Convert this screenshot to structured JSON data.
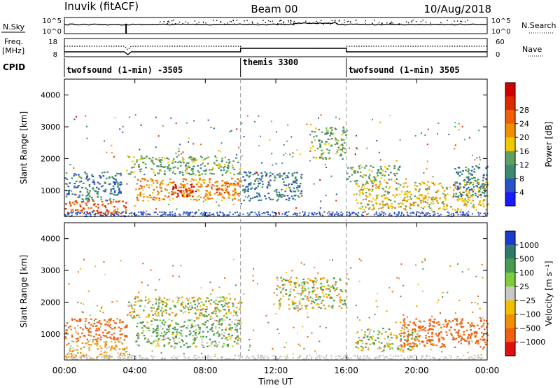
{
  "header": {
    "station": "Inuvik (fitACF)",
    "beam": "Beam 00",
    "date": "10/Aug/2018"
  },
  "left_labels": {
    "nsky": "N.Sky",
    "freq_top": "Freq.",
    "freq_unit": "[MHz]",
    "cpid": "CPID"
  },
  "right_labels": {
    "nsearch": "N.Search",
    "nave": "Nave"
  },
  "top_panels": {
    "noise_ticks_left": [
      "10^5",
      "10^0"
    ],
    "noise_ticks_right": [
      "10^5",
      "10^0"
    ],
    "freq_ticks_left": [
      "18",
      "8"
    ],
    "nave_ticks_right": [
      "60",
      "0"
    ]
  },
  "cpid_segments": [
    {
      "label": "twofsound (1-min) -3505",
      "start": 0,
      "end": 10
    },
    {
      "label": "themis 3300",
      "start": 10,
      "end": 16
    },
    {
      "label": "twofsound (1-min) 3505",
      "start": 16,
      "end": 24
    }
  ],
  "axes": {
    "xlabel": "Time UT",
    "ylabel": "Slant Range [km]",
    "x_ticks": [
      "00:00",
      "04:00",
      "08:00",
      "12:00",
      "16:00",
      "20:00",
      "00:00"
    ],
    "y_ticks": [
      "1000",
      "2000",
      "3000",
      "4000"
    ]
  },
  "colorbars": {
    "power": {
      "title": "Power [dB]",
      "ticks": [
        "4",
        "8",
        "12",
        "16",
        "20",
        "24",
        "28"
      ],
      "colors": [
        "#1a1aff",
        "#2a52c8",
        "#3a8a70",
        "#5fa060",
        "#f0c800",
        "#f09000",
        "#f06000",
        "#e02800",
        "#d00000"
      ]
    },
    "velocity": {
      "title": "Velocity [m s⁻¹]",
      "ticks": [
        "1000",
        "500",
        "100",
        "25",
        "−25",
        "−100",
        "−500",
        "−1000"
      ],
      "colors": [
        "#1a3cc8",
        "#2f7a68",
        "#4a9a50",
        "#7ccd3c",
        "#c8c8c4",
        "#f0c000",
        "#f09000",
        "#f06010",
        "#e01010"
      ]
    }
  },
  "chart_data": {
    "type": "heatmap",
    "x_unit": "hours UT",
    "y_unit": "km",
    "xlim": [
      0,
      24
    ],
    "ylim": [
      180,
      4500
    ],
    "power_clusters": [
      {
        "t0": 0.0,
        "t1": 3.6,
        "r0": 250,
        "r1": 700,
        "level": 24
      },
      {
        "t0": 0.0,
        "t1": 3.2,
        "r0": 700,
        "r1": 1600,
        "level": 8
      },
      {
        "t0": 4.0,
        "t1": 10.0,
        "r0": 700,
        "r1": 1400,
        "level": 20
      },
      {
        "t0": 6.0,
        "t1": 7.5,
        "r0": 800,
        "r1": 1200,
        "level": 28
      },
      {
        "t0": 8.5,
        "t1": 10.0,
        "r0": 900,
        "r1": 1300,
        "level": 24
      },
      {
        "t0": 3.5,
        "t1": 10.0,
        "r0": 1500,
        "r1": 2100,
        "level": 12
      },
      {
        "t0": 10.0,
        "t1": 13.5,
        "r0": 700,
        "r1": 1600,
        "level": 8
      },
      {
        "t0": 14.0,
        "t1": 16.0,
        "r0": 2000,
        "r1": 3000,
        "level": 12
      },
      {
        "t0": 16.0,
        "t1": 19.0,
        "r0": 1300,
        "r1": 1800,
        "level": 12
      },
      {
        "t0": 16.5,
        "t1": 24.0,
        "r0": 400,
        "r1": 1300,
        "level": 16
      },
      {
        "t0": 22.0,
        "t1": 24.0,
        "r0": 800,
        "r1": 1800,
        "level": 8
      }
    ],
    "velocity_clusters": [
      {
        "t0": 0.0,
        "t1": 3.6,
        "r0": 250,
        "r1": 800,
        "v": -100
      },
      {
        "t0": 0.0,
        "t1": 3.5,
        "r0": 800,
        "r1": 1500,
        "v": -500
      },
      {
        "t0": 4.0,
        "t1": 10.0,
        "r0": 600,
        "r1": 1500,
        "v": 100
      },
      {
        "t0": 3.5,
        "t1": 10.0,
        "r0": 1500,
        "r1": 2200,
        "v": 0
      },
      {
        "t0": 12.0,
        "t1": 16.0,
        "r0": 1800,
        "r1": 2800,
        "v": 0
      },
      {
        "t0": 16.5,
        "t1": 20.0,
        "r0": 500,
        "r1": 1200,
        "v": 25
      },
      {
        "t0": 19.0,
        "t1": 24.0,
        "r0": 600,
        "r1": 1500,
        "v": -500
      }
    ]
  }
}
